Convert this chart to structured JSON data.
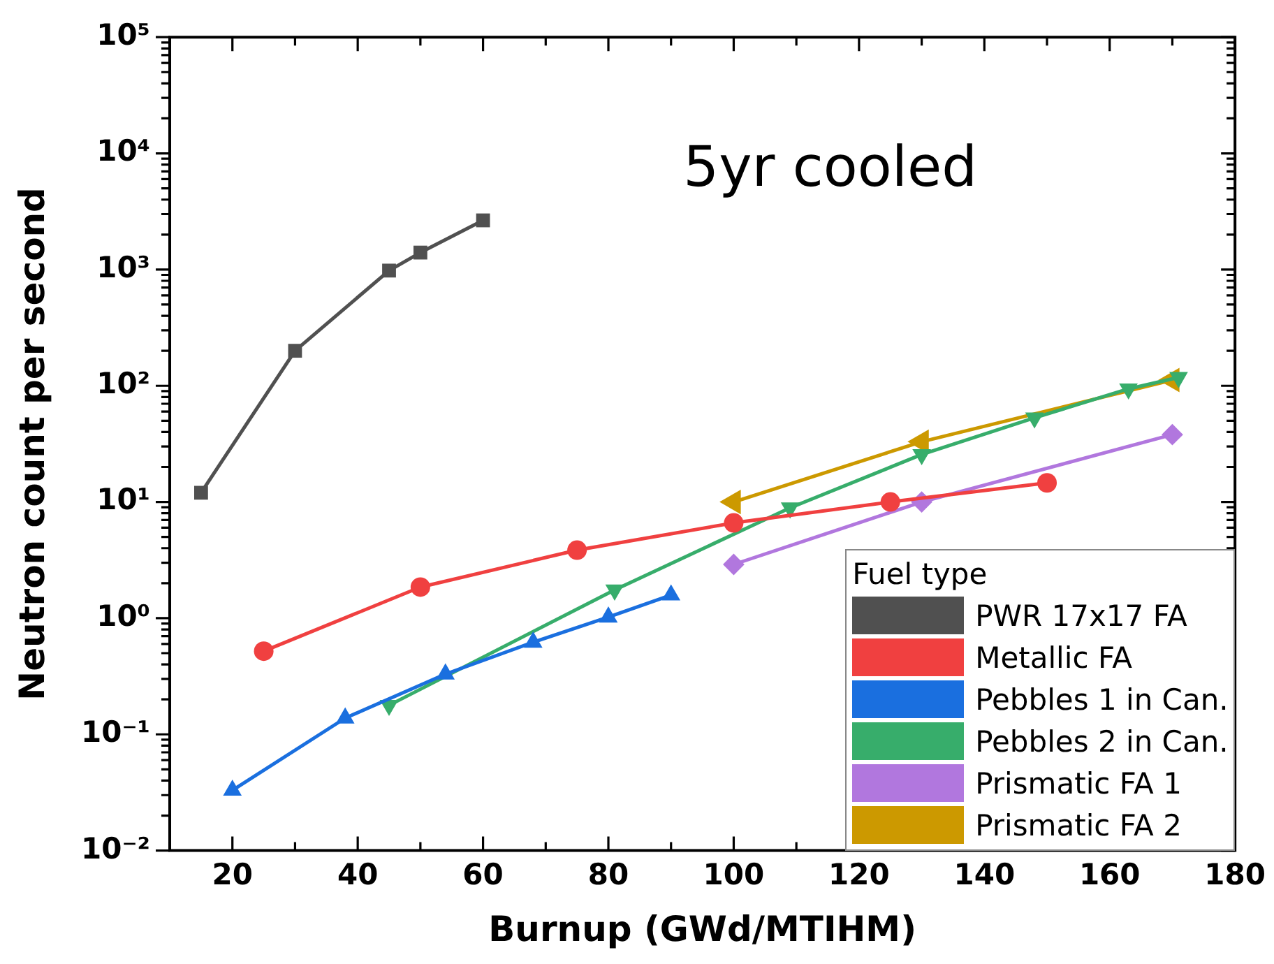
{
  "chart_data": {
    "type": "line",
    "xlabel": "Burnup (GWd/MTIHM)",
    "ylabel": "Neutron count per second",
    "annotations": [
      "5yr cooled"
    ],
    "legend_title": "Fuel type",
    "legend": "bottom right",
    "log": "y",
    "xlim": [
      10,
      180
    ],
    "xticks": [
      {
        "value": 10,
        "label": null
      },
      20,
      {
        "value": 30,
        "label": null
      },
      40,
      {
        "value": 50,
        "label": null
      },
      60,
      {
        "value": 70,
        "label": null
      },
      80,
      {
        "value": 90,
        "label": null
      },
      100,
      {
        "value": 110,
        "label": null
      },
      120,
      {
        "value": 130,
        "label": null
      },
      140,
      {
        "value": 150,
        "label": null
      },
      160,
      {
        "value": 170,
        "label": null
      },
      180
    ],
    "ylim": [
      0.01,
      100000
    ],
    "yticks": [
      {
        "value": 0.01,
        "label": "10⁻²"
      },
      {
        "value": 0.02,
        "label": null
      },
      {
        "value": 0.03,
        "label": null
      },
      {
        "value": 0.04,
        "label": null
      },
      {
        "value": 0.05,
        "label": null
      },
      {
        "value": 0.06,
        "label": null
      },
      {
        "value": 0.07,
        "label": null
      },
      {
        "value": 0.08,
        "label": null
      },
      {
        "value": 0.09,
        "label": null
      },
      {
        "value": 0.1,
        "label": "10⁻¹"
      },
      {
        "value": 0.2,
        "label": null
      },
      {
        "value": 0.3,
        "label": null
      },
      {
        "value": 0.4,
        "label": null
      },
      {
        "value": 0.5,
        "label": null
      },
      {
        "value": 0.6,
        "label": null
      },
      {
        "value": 0.7,
        "label": null
      },
      {
        "value": 0.8,
        "label": null
      },
      {
        "value": 0.9,
        "label": null
      },
      {
        "value": 1,
        "label": "10⁰"
      },
      {
        "value": 2,
        "label": null
      },
      {
        "value": 3,
        "label": null
      },
      {
        "value": 4,
        "label": null
      },
      {
        "value": 5,
        "label": null
      },
      {
        "value": 6,
        "label": null
      },
      {
        "value": 7,
        "label": null
      },
      {
        "value": 8,
        "label": null
      },
      {
        "value": 9,
        "label": null
      },
      {
        "value": 10,
        "label": "10¹"
      },
      {
        "value": 20,
        "label": null
      },
      {
        "value": 30,
        "label": null
      },
      {
        "value": 40,
        "label": null
      },
      {
        "value": 50,
        "label": null
      },
      {
        "value": 60,
        "label": null
      },
      {
        "value": 70,
        "label": null
      },
      {
        "value": 80,
        "label": null
      },
      {
        "value": 90,
        "label": null
      },
      {
        "value": 100,
        "label": "10²"
      },
      {
        "value": 200,
        "label": null
      },
      {
        "value": 300,
        "label": null
      },
      {
        "value": 400,
        "label": null
      },
      {
        "value": 500,
        "label": null
      },
      {
        "value": 600,
        "label": null
      },
      {
        "value": 700,
        "label": null
      },
      {
        "value": 800,
        "label": null
      },
      {
        "value": 900,
        "label": null
      },
      {
        "value": 1000,
        "label": "10³"
      },
      {
        "value": 2000,
        "label": null
      },
      {
        "value": 3000,
        "label": null
      },
      {
        "value": 4000,
        "label": null
      },
      {
        "value": 5000,
        "label": null
      },
      {
        "value": 6000,
        "label": null
      },
      {
        "value": 7000,
        "label": null
      },
      {
        "value": 8000,
        "label": null
      },
      {
        "value": 9000,
        "label": null
      },
      {
        "value": 10000,
        "label": "10⁴"
      },
      {
        "value": 20000,
        "label": null
      },
      {
        "value": 30000,
        "label": null
      },
      {
        "value": 40000,
        "label": null
      },
      {
        "value": 50000,
        "label": null
      },
      {
        "value": 60000,
        "label": null
      },
      {
        "value": 70000,
        "label": null
      },
      {
        "value": 80000,
        "label": null
      },
      {
        "value": 90000,
        "label": null
      },
      {
        "value": 100000,
        "label": "10⁵"
      }
    ],
    "series": [
      {
        "name": "PWR 17x17 FA",
        "color": "#505050",
        "marker": "square",
        "x": [
          15,
          30,
          45,
          50,
          60
        ],
        "values": [
          12,
          200,
          980,
          1400,
          2650
        ]
      },
      {
        "name": "Metallic FA",
        "color": "#f04040",
        "marker": "circle",
        "x": [
          25,
          50,
          75,
          100,
          125,
          150
        ],
        "values": [
          0.52,
          1.85,
          3.85,
          6.6,
          10,
          14.6
        ]
      },
      {
        "name": "Pebbles 1 in Can.",
        "color": "#1a6fdf",
        "marker": "triangle",
        "x": [
          20,
          38,
          54,
          68,
          80,
          90
        ],
        "values": [
          0.033,
          0.138,
          0.33,
          0.62,
          1.02,
          1.58
        ]
      },
      {
        "name": "Pebbles 2 in Can.",
        "color": "#37ad6b",
        "marker": "triangle_down",
        "x": [
          45,
          81,
          109,
          130,
          148,
          163,
          171
        ],
        "values": [
          0.178,
          1.75,
          8.9,
          25.6,
          53,
          94,
          118
        ]
      },
      {
        "name": "Prismatic FA 1",
        "color": "#b177de",
        "marker": "diamond",
        "x": [
          100,
          130,
          170
        ],
        "values": [
          2.9,
          10,
          38
        ]
      },
      {
        "name": "Prismatic FA 2",
        "color": "#cc9900",
        "marker": "triangle_left",
        "x": [
          100,
          130,
          170
        ],
        "values": [
          10,
          33,
          112
        ]
      }
    ]
  }
}
